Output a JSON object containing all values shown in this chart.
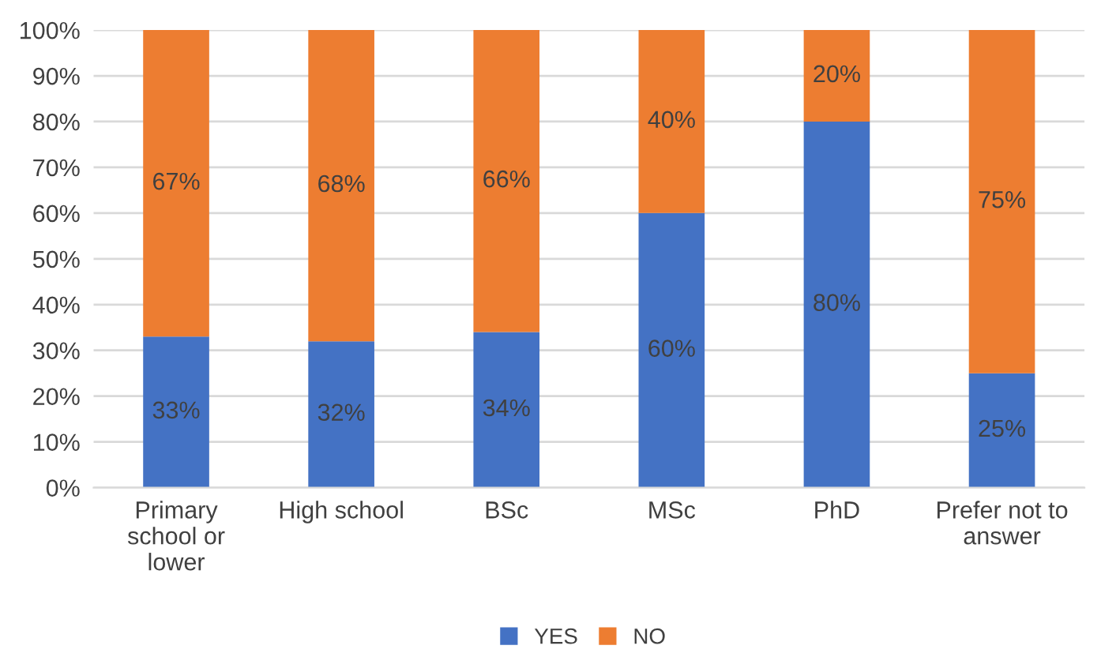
{
  "chart_data": {
    "type": "bar",
    "stacked": true,
    "categories": [
      "Primary school or lower",
      "High school",
      "BSc",
      "MSc",
      "PhD",
      "Prefer not to answer"
    ],
    "series": [
      {
        "name": "YES",
        "color": "#4472c4",
        "values": [
          33,
          32,
          34,
          60,
          80,
          25
        ],
        "value_labels": [
          "33%",
          "32%",
          "34%",
          "60%",
          "80%",
          "25%"
        ]
      },
      {
        "name": "NO",
        "color": "#ed7d31",
        "values": [
          67,
          68,
          66,
          40,
          20,
          75
        ],
        "value_labels": [
          "67%",
          "68%",
          "66%",
          "40%",
          "20%",
          "75%"
        ]
      }
    ],
    "ylim": [
      0,
      100
    ],
    "yticks": [
      {
        "value": 0,
        "label": "0%"
      },
      {
        "value": 10,
        "label": "10%"
      },
      {
        "value": 20,
        "label": "20%"
      },
      {
        "value": 30,
        "label": "30%"
      },
      {
        "value": 40,
        "label": "40%"
      },
      {
        "value": 50,
        "label": "50%"
      },
      {
        "value": 60,
        "label": "60%"
      },
      {
        "value": 70,
        "label": "70%"
      },
      {
        "value": 80,
        "label": "80%"
      },
      {
        "value": 90,
        "label": "90%"
      },
      {
        "value": 100,
        "label": "100%"
      }
    ],
    "grid": "y",
    "legend": "bottom"
  }
}
